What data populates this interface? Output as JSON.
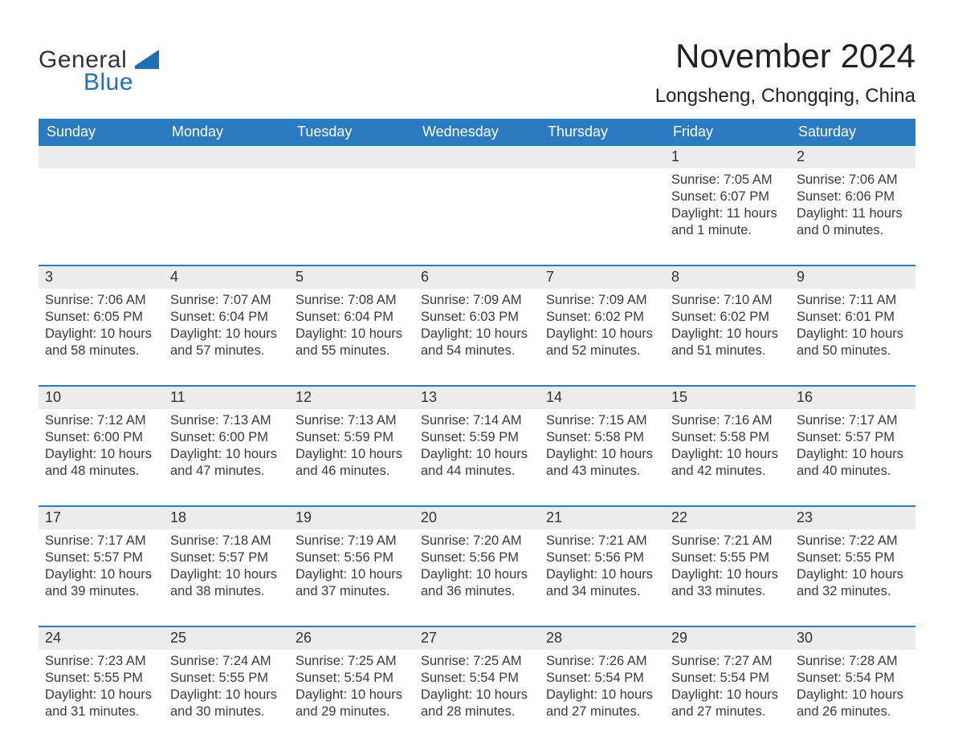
{
  "brand": {
    "word1": "General",
    "word2": "Blue",
    "colors": {
      "brand_blue": "#1f6fb2",
      "header_blue": "#2a7bbf",
      "row_separator": "#2a7bbf",
      "daynum_bg": "#ececec",
      "page_bg": "#ffffff",
      "text": "#2b2b2b"
    }
  },
  "title": {
    "month_year": "November 2024",
    "location": "Longsheng, Chongqing, China"
  },
  "typography": {
    "month_title_fontsize_pt": 32,
    "location_fontsize_pt": 18,
    "dow_fontsize_pt": 14,
    "daynum_fontsize_pt": 14,
    "cell_fontsize_pt": 12
  },
  "calendar": {
    "type": "table",
    "columns": 7,
    "rows": 5,
    "days_of_week": [
      "Sunday",
      "Monday",
      "Tuesday",
      "Wednesday",
      "Thursday",
      "Friday",
      "Saturday"
    ],
    "leading_blanks": 5,
    "cells": [
      {
        "day": 1,
        "sunrise": "7:05 AM",
        "sunset": "6:07 PM",
        "daylight": "11 hours and 1 minute."
      },
      {
        "day": 2,
        "sunrise": "7:06 AM",
        "sunset": "6:06 PM",
        "daylight": "11 hours and 0 minutes."
      },
      {
        "day": 3,
        "sunrise": "7:06 AM",
        "sunset": "6:05 PM",
        "daylight": "10 hours and 58 minutes."
      },
      {
        "day": 4,
        "sunrise": "7:07 AM",
        "sunset": "6:04 PM",
        "daylight": "10 hours and 57 minutes."
      },
      {
        "day": 5,
        "sunrise": "7:08 AM",
        "sunset": "6:04 PM",
        "daylight": "10 hours and 55 minutes."
      },
      {
        "day": 6,
        "sunrise": "7:09 AM",
        "sunset": "6:03 PM",
        "daylight": "10 hours and 54 minutes."
      },
      {
        "day": 7,
        "sunrise": "7:09 AM",
        "sunset": "6:02 PM",
        "daylight": "10 hours and 52 minutes."
      },
      {
        "day": 8,
        "sunrise": "7:10 AM",
        "sunset": "6:02 PM",
        "daylight": "10 hours and 51 minutes."
      },
      {
        "day": 9,
        "sunrise": "7:11 AM",
        "sunset": "6:01 PM",
        "daylight": "10 hours and 50 minutes."
      },
      {
        "day": 10,
        "sunrise": "7:12 AM",
        "sunset": "6:00 PM",
        "daylight": "10 hours and 48 minutes."
      },
      {
        "day": 11,
        "sunrise": "7:13 AM",
        "sunset": "6:00 PM",
        "daylight": "10 hours and 47 minutes."
      },
      {
        "day": 12,
        "sunrise": "7:13 AM",
        "sunset": "5:59 PM",
        "daylight": "10 hours and 46 minutes."
      },
      {
        "day": 13,
        "sunrise": "7:14 AM",
        "sunset": "5:59 PM",
        "daylight": "10 hours and 44 minutes."
      },
      {
        "day": 14,
        "sunrise": "7:15 AM",
        "sunset": "5:58 PM",
        "daylight": "10 hours and 43 minutes."
      },
      {
        "day": 15,
        "sunrise": "7:16 AM",
        "sunset": "5:58 PM",
        "daylight": "10 hours and 42 minutes."
      },
      {
        "day": 16,
        "sunrise": "7:17 AM",
        "sunset": "5:57 PM",
        "daylight": "10 hours and 40 minutes."
      },
      {
        "day": 17,
        "sunrise": "7:17 AM",
        "sunset": "5:57 PM",
        "daylight": "10 hours and 39 minutes."
      },
      {
        "day": 18,
        "sunrise": "7:18 AM",
        "sunset": "5:57 PM",
        "daylight": "10 hours and 38 minutes."
      },
      {
        "day": 19,
        "sunrise": "7:19 AM",
        "sunset": "5:56 PM",
        "daylight": "10 hours and 37 minutes."
      },
      {
        "day": 20,
        "sunrise": "7:20 AM",
        "sunset": "5:56 PM",
        "daylight": "10 hours and 36 minutes."
      },
      {
        "day": 21,
        "sunrise": "7:21 AM",
        "sunset": "5:56 PM",
        "daylight": "10 hours and 34 minutes."
      },
      {
        "day": 22,
        "sunrise": "7:21 AM",
        "sunset": "5:55 PM",
        "daylight": "10 hours and 33 minutes."
      },
      {
        "day": 23,
        "sunrise": "7:22 AM",
        "sunset": "5:55 PM",
        "daylight": "10 hours and 32 minutes."
      },
      {
        "day": 24,
        "sunrise": "7:23 AM",
        "sunset": "5:55 PM",
        "daylight": "10 hours and 31 minutes."
      },
      {
        "day": 25,
        "sunrise": "7:24 AM",
        "sunset": "5:55 PM",
        "daylight": "10 hours and 30 minutes."
      },
      {
        "day": 26,
        "sunrise": "7:25 AM",
        "sunset": "5:54 PM",
        "daylight": "10 hours and 29 minutes."
      },
      {
        "day": 27,
        "sunrise": "7:25 AM",
        "sunset": "5:54 PM",
        "daylight": "10 hours and 28 minutes."
      },
      {
        "day": 28,
        "sunrise": "7:26 AM",
        "sunset": "5:54 PM",
        "daylight": "10 hours and 27 minutes."
      },
      {
        "day": 29,
        "sunrise": "7:27 AM",
        "sunset": "5:54 PM",
        "daylight": "10 hours and 27 minutes."
      },
      {
        "day": 30,
        "sunrise": "7:28 AM",
        "sunset": "5:54 PM",
        "daylight": "10 hours and 26 minutes."
      }
    ],
    "labels": {
      "sunrise_prefix": "Sunrise: ",
      "sunset_prefix": "Sunset: ",
      "daylight_prefix": "Daylight: "
    }
  }
}
